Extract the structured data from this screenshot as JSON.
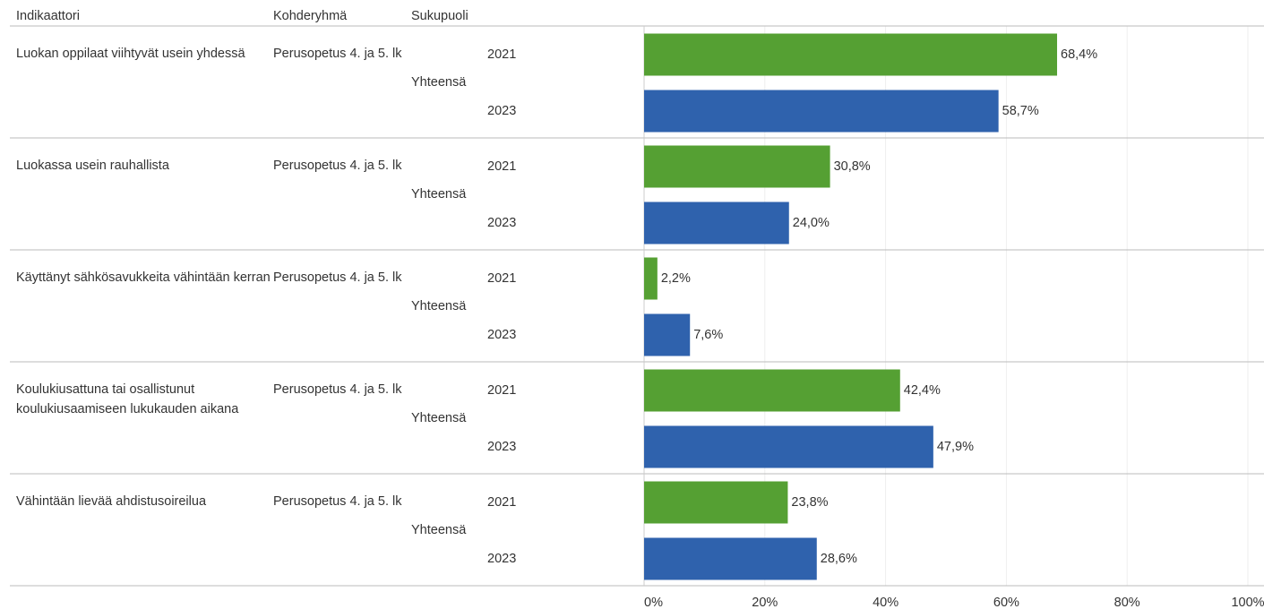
{
  "chart_data": {
    "type": "bar",
    "orientation": "horizontal",
    "columns": [
      "Indikaattori",
      "Kohderyhmä",
      "Sukupuoli"
    ],
    "rows": [
      {
        "indicator": "Luokan oppilaat viihtyvät usein yhdessä",
        "group": "Perusopetus 4. ja 5. lk",
        "gender": "Yhteensä",
        "categories": [
          "2021",
          "2023"
        ],
        "values": [
          68.4,
          58.7
        ],
        "value_labels": [
          "68,4%",
          "58,7%"
        ]
      },
      {
        "indicator": "Luokassa usein rauhallista",
        "group": "Perusopetus 4. ja 5. lk",
        "gender": "Yhteensä",
        "categories": [
          "2021",
          "2023"
        ],
        "values": [
          30.8,
          24.0
        ],
        "value_labels": [
          "30,8%",
          "24,0%"
        ]
      },
      {
        "indicator": "Käyttänyt sähkösavukkeita vähintään kerran",
        "group": "Perusopetus 4. ja 5. lk",
        "gender": "Yhteensä",
        "categories": [
          "2021",
          "2023"
        ],
        "values": [
          2.2,
          7.6
        ],
        "value_labels": [
          "2,2%",
          "7,6%"
        ]
      },
      {
        "indicator": "Koulukiusattuna tai osallistunut koulukiusaamiseen lukukauden aikana",
        "group": "Perusopetus 4. ja 5. lk",
        "gender": "Yhteensä",
        "categories": [
          "2021",
          "2023"
        ],
        "values": [
          42.4,
          47.9
        ],
        "value_labels": [
          "42,4%",
          "47,9%"
        ]
      },
      {
        "indicator": "Vähintään lievää ahdistusoireilua",
        "group": "Perusopetus 4. ja 5. lk",
        "gender": "Yhteensä",
        "categories": [
          "2021",
          "2023"
        ],
        "values": [
          23.8,
          28.6
        ],
        "value_labels": [
          "23,8%",
          "28,6%"
        ]
      }
    ],
    "colors": [
      "#55a033",
      "#2f62ad"
    ],
    "xlim": [
      0,
      100
    ],
    "xticks": [
      {
        "value": 0,
        "label": "0%"
      },
      {
        "value": 20,
        "label": "20%"
      },
      {
        "value": 40,
        "label": "40%"
      },
      {
        "value": 60,
        "label": "60%"
      },
      {
        "value": 80,
        "label": "80%"
      },
      {
        "value": 100,
        "label": "100%"
      }
    ],
    "grid": true
  }
}
